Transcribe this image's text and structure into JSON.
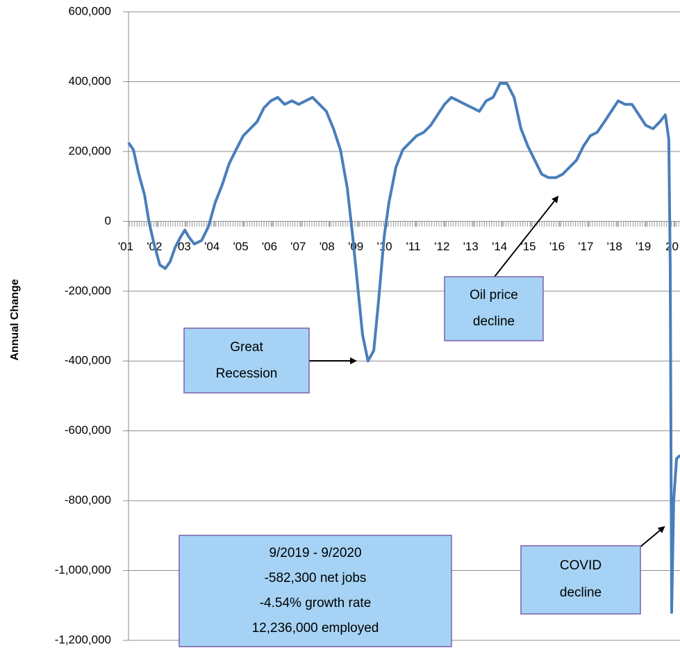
{
  "chart_data": {
    "type": "line",
    "y_label": "Annual Change",
    "x": [
      2001.0,
      2001.17,
      2001.36,
      2001.56,
      2001.72,
      2001.89,
      2002.09,
      2002.28,
      2002.45,
      2002.62,
      2002.81,
      2002.96,
      2003.1,
      2003.29,
      2003.54,
      2003.78,
      2004.02,
      2004.26,
      2004.5,
      2004.74,
      2004.99,
      2005.23,
      2005.47,
      2005.71,
      2005.95,
      2006.19,
      2006.43,
      2006.68,
      2006.92,
      2007.16,
      2007.4,
      2007.64,
      2007.88,
      2008.13,
      2008.37,
      2008.61,
      2008.8,
      2008.97,
      2009.14,
      2009.33,
      2009.53,
      2009.7,
      2009.89,
      2010.06,
      2010.3,
      2010.54,
      2010.78,
      2011.02,
      2011.27,
      2011.51,
      2011.75,
      2011.99,
      2012.23,
      2012.47,
      2012.71,
      2012.96,
      2013.2,
      2013.44,
      2013.68,
      2013.92,
      2014.16,
      2014.41,
      2014.65,
      2014.89,
      2015.13,
      2015.37,
      2015.61,
      2015.86,
      2016.1,
      2016.34,
      2016.58,
      2016.82,
      2017.06,
      2017.3,
      2017.55,
      2017.79,
      2018.03,
      2018.27,
      2018.51,
      2018.75,
      2018.99,
      2019.24,
      2019.48,
      2019.67,
      2019.79,
      2019.84,
      2019.89,
      2019.96,
      2020.06,
      2020.18
    ],
    "series": [
      {
        "name": "Annual Change",
        "color": "#4a7ebb",
        "values": [
          225000,
          205000,
          135000,
          75000,
          -5000,
          -65000,
          -125000,
          -135000,
          -115000,
          -75000,
          -45000,
          -25000,
          -45000,
          -65000,
          -55000,
          -15000,
          55000,
          105000,
          165000,
          205000,
          245000,
          265000,
          285000,
          325000,
          345000,
          355000,
          335000,
          345000,
          335000,
          345000,
          355000,
          335000,
          315000,
          265000,
          205000,
          95000,
          -45000,
          -185000,
          -325000,
          -400000,
          -370000,
          -225000,
          -45000,
          55000,
          155000,
          205000,
          225000,
          245000,
          255000,
          275000,
          305000,
          335000,
          355000,
          345000,
          335000,
          325000,
          315000,
          345000,
          355000,
          395000,
          395000,
          355000,
          265000,
          215000,
          175000,
          135000,
          125000,
          125000,
          135000,
          155000,
          175000,
          215000,
          245000,
          255000,
          285000,
          315000,
          345000,
          335000,
          335000,
          305000,
          275000,
          265000,
          285000,
          305000,
          235000,
          -125000,
          -1120000,
          -800000,
          -680000,
          -670000
        ]
      }
    ],
    "xlim": [
      2001,
      2020.18
    ],
    "xticks": [
      {
        "value": 2001,
        "label": "'01"
      },
      {
        "value": 2002,
        "label": "'02"
      },
      {
        "value": 2003,
        "label": "'03"
      },
      {
        "value": 2004,
        "label": "'04"
      },
      {
        "value": 2005,
        "label": "'05"
      },
      {
        "value": 2006,
        "label": "'06"
      },
      {
        "value": 2007,
        "label": "'07"
      },
      {
        "value": 2008,
        "label": "'08"
      },
      {
        "value": 2009,
        "label": "'09"
      },
      {
        "value": 2010,
        "label": "'10"
      },
      {
        "value": 2011,
        "label": "'11"
      },
      {
        "value": 2012,
        "label": "'12"
      },
      {
        "value": 2013,
        "label": "'13"
      },
      {
        "value": 2014,
        "label": "'14"
      },
      {
        "value": 2015,
        "label": "'15"
      },
      {
        "value": 2016,
        "label": "'16"
      },
      {
        "value": 2017,
        "label": "'17"
      },
      {
        "value": 2018,
        "label": "'18"
      },
      {
        "value": 2019,
        "label": "'19"
      },
      {
        "value": 2020,
        "label": "20"
      }
    ],
    "ylim": [
      -1200000,
      600000
    ],
    "yticks": [
      {
        "value": 600000,
        "label": "600,000"
      },
      {
        "value": 400000,
        "label": "400,000"
      },
      {
        "value": 200000,
        "label": "200,000"
      },
      0,
      {
        "value": -200000,
        "label": "-200,000"
      },
      {
        "value": -400000,
        "label": "-400,000"
      },
      {
        "value": -600000,
        "label": "-600,000"
      },
      {
        "value": -800000,
        "label": "-800,000"
      },
      {
        "value": -1000000,
        "label": "-1,000,000"
      },
      {
        "value": -1200000,
        "label": "-1,200,000"
      }
    ],
    "grid": true,
    "annotations": {
      "great_recession": [
        "Great",
        "Recession"
      ],
      "oil": [
        "Oil price",
        "decline"
      ],
      "covid": [
        "COVID",
        "decline"
      ],
      "stats": [
        "9/2019 - 9/2020",
        "-582,300  net jobs",
        "-4.54% growth rate",
        "12,236,000  employed"
      ]
    }
  }
}
